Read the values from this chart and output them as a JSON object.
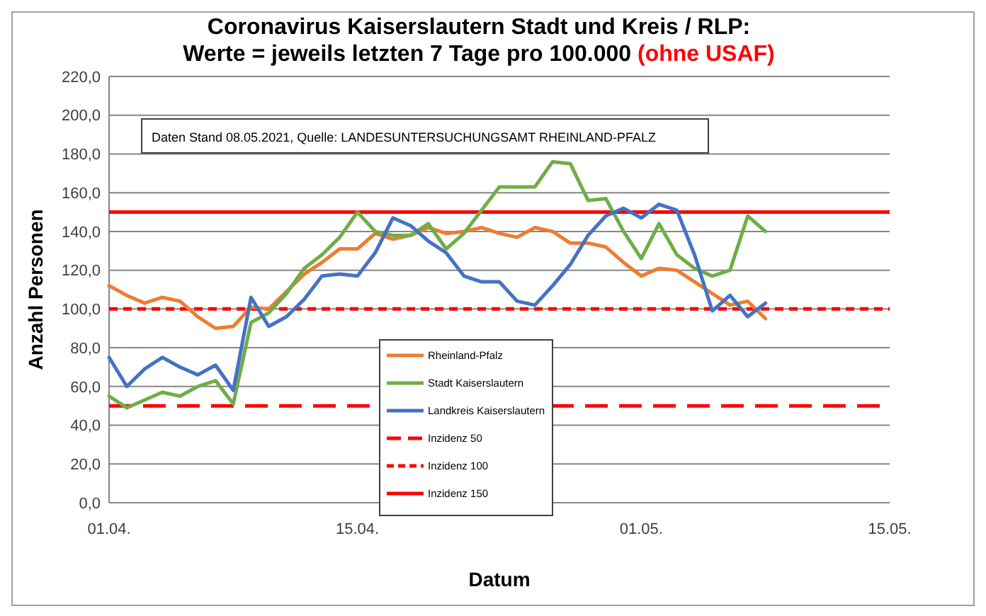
{
  "chart_data": {
    "type": "line",
    "title": "Coronavirus Kaiserslautern Stadt und Kreis / RLP:",
    "subtitle": "Werte = jeweils letzten 7 Tage pro 100.000",
    "annotations": [
      "Daten Stand 08.05.2021, Quelle: LANDESUNTERSUCHUNGSAMT RHEINLAND-PFALZ",
      "(ohne USAF)"
    ],
    "xlabel": "Datum",
    "ylabel": "Anzahl Personen",
    "x": [
      "2021-04-01",
      "2021-04-02",
      "2021-04-03",
      "2021-04-04",
      "2021-04-05",
      "2021-04-06",
      "2021-04-07",
      "2021-04-08",
      "2021-04-09",
      "2021-04-10",
      "2021-04-11",
      "2021-04-12",
      "2021-04-13",
      "2021-04-14",
      "2021-04-15",
      "2021-04-16",
      "2021-04-17",
      "2021-04-18",
      "2021-04-19",
      "2021-04-20",
      "2021-04-21",
      "2021-04-22",
      "2021-04-23",
      "2021-04-24",
      "2021-04-25",
      "2021-04-26",
      "2021-04-27",
      "2021-04-28",
      "2021-04-29",
      "2021-04-30",
      "2021-05-01",
      "2021-05-02",
      "2021-05-03",
      "2021-05-04",
      "2021-05-05",
      "2021-05-06",
      "2021-05-07",
      "2021-05-08"
    ],
    "series": [
      {
        "name": "Rheinland-Pfalz",
        "color": "#ed7d31",
        "values": [
          112,
          107,
          103,
          106,
          104,
          96,
          90,
          91,
          101,
          100,
          109,
          118,
          124,
          131,
          131,
          139,
          136,
          138,
          142,
          139,
          140,
          142,
          139,
          137,
          142,
          140,
          134,
          134,
          132,
          124,
          117,
          121,
          120,
          114,
          108,
          102,
          104,
          95
        ]
      },
      {
        "name": "Stadt Kaiserslautern",
        "color": "#70ad47",
        "values": [
          55,
          49,
          53,
          57,
          55,
          60,
          63,
          51,
          93,
          98,
          108,
          121,
          128,
          137,
          150,
          140,
          138,
          138,
          144,
          131,
          139,
          151,
          163,
          163,
          163,
          176,
          175,
          156,
          157,
          140,
          126,
          144,
          128,
          121,
          117,
          120,
          148,
          140
        ]
      },
      {
        "name": "Landkreis Kaiserslautern",
        "color": "#4472c4",
        "values": [
          75,
          60,
          69,
          75,
          70,
          66,
          71,
          58,
          106,
          91,
          96,
          105,
          117,
          118,
          117,
          129,
          147,
          143,
          135,
          129,
          117,
          114,
          114,
          104,
          102,
          112,
          123,
          138,
          148,
          152,
          147,
          154,
          151,
          128,
          99,
          107,
          96,
          103
        ]
      }
    ],
    "ref_lines": [
      {
        "axis": "y",
        "value": 50,
        "label": "Inzidenz 50",
        "color": "#ff0000",
        "line_style": "dashed"
      },
      {
        "axis": "y",
        "value": 100,
        "label": "Inzidenz 100",
        "color": "#ff0000",
        "line_style": "dotted"
      },
      {
        "axis": "y",
        "value": 150,
        "label": "Inzidenz 150",
        "color": "#ff0000",
        "line_style": "solid"
      }
    ],
    "xlim": [
      "2021-04-01",
      "2021-05-15"
    ],
    "xticks": [
      {
        "value": "2021-04-01",
        "label": "01.04."
      },
      {
        "value": "2021-04-15",
        "label": "15.04."
      },
      {
        "value": "2021-05-01",
        "label": "01.05."
      },
      {
        "value": "2021-05-15",
        "label": "15.05."
      }
    ],
    "ylim": [
      0,
      220
    ],
    "yticks": [
      {
        "value": 0,
        "label": "0,0"
      },
      {
        "value": 20,
        "label": "20,0"
      },
      {
        "value": 40,
        "label": "40,0"
      },
      {
        "value": 60,
        "label": "60,0"
      },
      {
        "value": 80,
        "label": "80,0"
      },
      {
        "value": 100,
        "label": "100,0"
      },
      {
        "value": 120,
        "label": "120,0"
      },
      {
        "value": 140,
        "label": "140,0"
      },
      {
        "value": 160,
        "label": "160,0"
      },
      {
        "value": 180,
        "label": "180,0"
      },
      {
        "value": 200,
        "label": "200,0"
      },
      {
        "value": 220,
        "label": "220,0"
      }
    ],
    "grid": "y",
    "legend": "center",
    "marker": "none",
    "line_style": "solid"
  }
}
